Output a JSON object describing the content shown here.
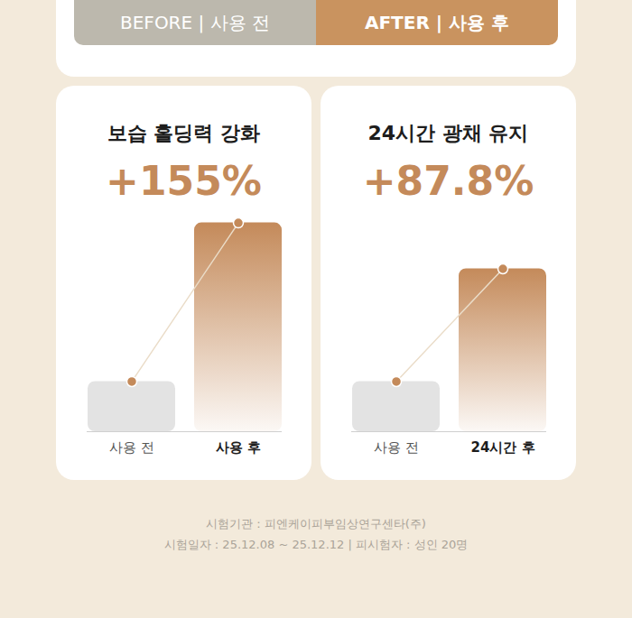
{
  "banner": {
    "before": "BEFORE | 사용 전",
    "after": "AFTER | 사용 후",
    "colors": [
      "#bcb8ad",
      "#c9935f"
    ]
  },
  "chart_data": [
    {
      "type": "bar",
      "title": "보습 홀딩력 강화",
      "annotation": "+155%",
      "categories": [
        "사용 전",
        "사용 후"
      ],
      "values": [
        24,
        100
      ],
      "colors": [
        "#e3e3e3",
        "#c48a5a"
      ],
      "ylim": [
        0,
        105
      ],
      "tick_labels": "x"
    },
    {
      "type": "bar",
      "title": "24시간 광채 유지",
      "annotation": "+87.8%",
      "categories": [
        "사용 전",
        "24시간 후"
      ],
      "values": [
        24,
        78
      ],
      "colors": [
        "#e3e3e3",
        "#c48a5a"
      ],
      "ylim": [
        0,
        105
      ],
      "tick_labels": "x"
    }
  ],
  "footer": [
    "시험기관 : 피엔케이피부임상연구센타(주)",
    "시험일자 : 25.12.08 ~ 25.12.12 | 피시험자 : 성인 20명"
  ]
}
